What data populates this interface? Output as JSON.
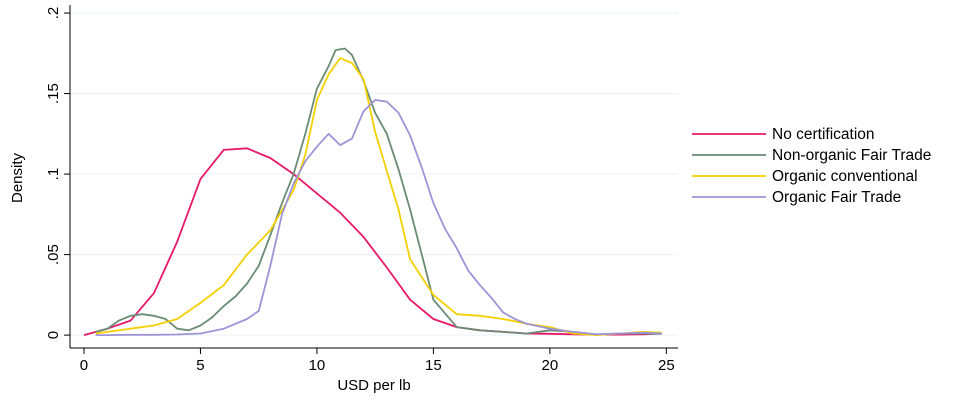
{
  "chart_data": {
    "type": "line",
    "xlabel": "USD per lb",
    "ylabel": "Density",
    "xlim": [
      -0.6,
      25.5
    ],
    "ylim": [
      -0.008,
      0.205
    ],
    "xticks": [
      {
        "value": 0,
        "label": "0"
      },
      {
        "value": 5,
        "label": "5"
      },
      {
        "value": 10,
        "label": "10"
      },
      {
        "value": 15,
        "label": "15"
      },
      {
        "value": 20,
        "label": "20"
      },
      {
        "value": 25,
        "label": "25"
      }
    ],
    "yticks": [
      {
        "value": 0,
        "label": "0"
      },
      {
        "value": 0.05,
        "label": ".05"
      },
      {
        "value": 0.1,
        "label": ".1"
      },
      {
        "value": 0.15,
        "label": ".15"
      },
      {
        "value": 0.2,
        "label": ".2"
      }
    ],
    "grid": true,
    "legend_position": "right",
    "series": [
      {
        "name": "No certification",
        "color": "#e8196a",
        "points": [
          [
            0,
            0
          ],
          [
            0.5,
            0.002
          ],
          [
            1,
            0.004
          ],
          [
            2,
            0.009
          ],
          [
            3,
            0.026
          ],
          [
            4,
            0.058
          ],
          [
            5,
            0.097
          ],
          [
            6,
            0.115
          ],
          [
            7,
            0.116
          ],
          [
            8,
            0.11
          ],
          [
            9,
            0.1
          ],
          [
            10,
            0.088
          ],
          [
            11,
            0.076
          ],
          [
            12,
            0.061
          ],
          [
            13,
            0.042
          ],
          [
            14,
            0.022
          ],
          [
            15,
            0.01
          ],
          [
            16,
            0.005
          ],
          [
            17,
            0.003
          ],
          [
            18,
            0.002
          ],
          [
            19,
            0.001
          ],
          [
            20,
            0.0008
          ],
          [
            21,
            0.0005
          ],
          [
            22,
            0.0003
          ],
          [
            23,
            0.0003
          ],
          [
            24,
            0.0005
          ],
          [
            24.8,
            0.001
          ]
        ]
      },
      {
        "name": "Non-organic Fair Trade",
        "color": "#6b8c74",
        "points": [
          [
            0.5,
            0.002
          ],
          [
            1,
            0.004
          ],
          [
            1.5,
            0.009
          ],
          [
            2,
            0.012
          ],
          [
            2.5,
            0.013
          ],
          [
            3,
            0.012
          ],
          [
            3.5,
            0.01
          ],
          [
            4,
            0.004
          ],
          [
            4.5,
            0.003
          ],
          [
            5,
            0.006
          ],
          [
            5.5,
            0.011
          ],
          [
            6,
            0.018
          ],
          [
            6.5,
            0.024
          ],
          [
            7,
            0.032
          ],
          [
            7.5,
            0.043
          ],
          [
            8,
            0.062
          ],
          [
            8.5,
            0.082
          ],
          [
            9,
            0.1
          ],
          [
            9.5,
            0.125
          ],
          [
            10,
            0.153
          ],
          [
            10.5,
            0.167
          ],
          [
            10.8,
            0.177
          ],
          [
            11.2,
            0.178
          ],
          [
            11.5,
            0.174
          ],
          [
            12,
            0.158
          ],
          [
            12.5,
            0.138
          ],
          [
            13,
            0.125
          ],
          [
            13.5,
            0.103
          ],
          [
            14,
            0.078
          ],
          [
            14.5,
            0.05
          ],
          [
            15,
            0.022
          ],
          [
            16,
            0.005
          ],
          [
            17,
            0.003
          ],
          [
            18,
            0.002
          ],
          [
            19,
            0.001
          ],
          [
            20,
            0.003
          ],
          [
            21,
            0.002
          ],
          [
            22,
            0.0004
          ],
          [
            23,
            0.001
          ],
          [
            24,
            0.001
          ],
          [
            24.8,
            0.0008
          ]
        ]
      },
      {
        "name": "Organic conventional",
        "color": "#f5d000",
        "points": [
          [
            0.5,
            0.001
          ],
          [
            1,
            0.002
          ],
          [
            2,
            0.004
          ],
          [
            3,
            0.006
          ],
          [
            4,
            0.01
          ],
          [
            5,
            0.02
          ],
          [
            6,
            0.031
          ],
          [
            7,
            0.05
          ],
          [
            8,
            0.065
          ],
          [
            9,
            0.09
          ],
          [
            9.5,
            0.112
          ],
          [
            10,
            0.146
          ],
          [
            10.5,
            0.162
          ],
          [
            11,
            0.172
          ],
          [
            11.5,
            0.169
          ],
          [
            12,
            0.159
          ],
          [
            12.5,
            0.126
          ],
          [
            13,
            0.102
          ],
          [
            13.5,
            0.078
          ],
          [
            14,
            0.047
          ],
          [
            15,
            0.025
          ],
          [
            16,
            0.013
          ],
          [
            17,
            0.012
          ],
          [
            18,
            0.01
          ],
          [
            19,
            0.007
          ],
          [
            20,
            0.005
          ],
          [
            21,
            0.001
          ],
          [
            22,
            0
          ],
          [
            23,
            0.001
          ],
          [
            24,
            0.002
          ],
          [
            24.8,
            0.0015
          ]
        ]
      },
      {
        "name": "Organic Fair Trade",
        "color": "#9d94d8",
        "points": [
          [
            0.5,
            0
          ],
          [
            1,
            0
          ],
          [
            2,
            0.0002
          ],
          [
            3,
            0.0002
          ],
          [
            4,
            0.0004
          ],
          [
            5,
            0.001
          ],
          [
            6,
            0.004
          ],
          [
            7,
            0.01
          ],
          [
            7.5,
            0.015
          ],
          [
            8,
            0.043
          ],
          [
            8.5,
            0.075
          ],
          [
            9,
            0.094
          ],
          [
            9.5,
            0.108
          ],
          [
            10,
            0.117
          ],
          [
            10.5,
            0.125
          ],
          [
            11,
            0.118
          ],
          [
            11.5,
            0.122
          ],
          [
            12,
            0.139
          ],
          [
            12.5,
            0.146
          ],
          [
            13,
            0.145
          ],
          [
            13.5,
            0.138
          ],
          [
            14,
            0.124
          ],
          [
            14.5,
            0.104
          ],
          [
            15,
            0.082
          ],
          [
            15.5,
            0.066
          ],
          [
            16,
            0.054
          ],
          [
            16.5,
            0.04
          ],
          [
            17,
            0.031
          ],
          [
            17.5,
            0.023
          ],
          [
            18,
            0.014
          ],
          [
            18.5,
            0.01
          ],
          [
            19,
            0.007
          ],
          [
            20,
            0.004
          ],
          [
            21,
            0.002
          ],
          [
            22,
            0.0005
          ],
          [
            23,
            0.001
          ],
          [
            24,
            0.0015
          ],
          [
            24.8,
            0.001
          ]
        ]
      }
    ]
  }
}
